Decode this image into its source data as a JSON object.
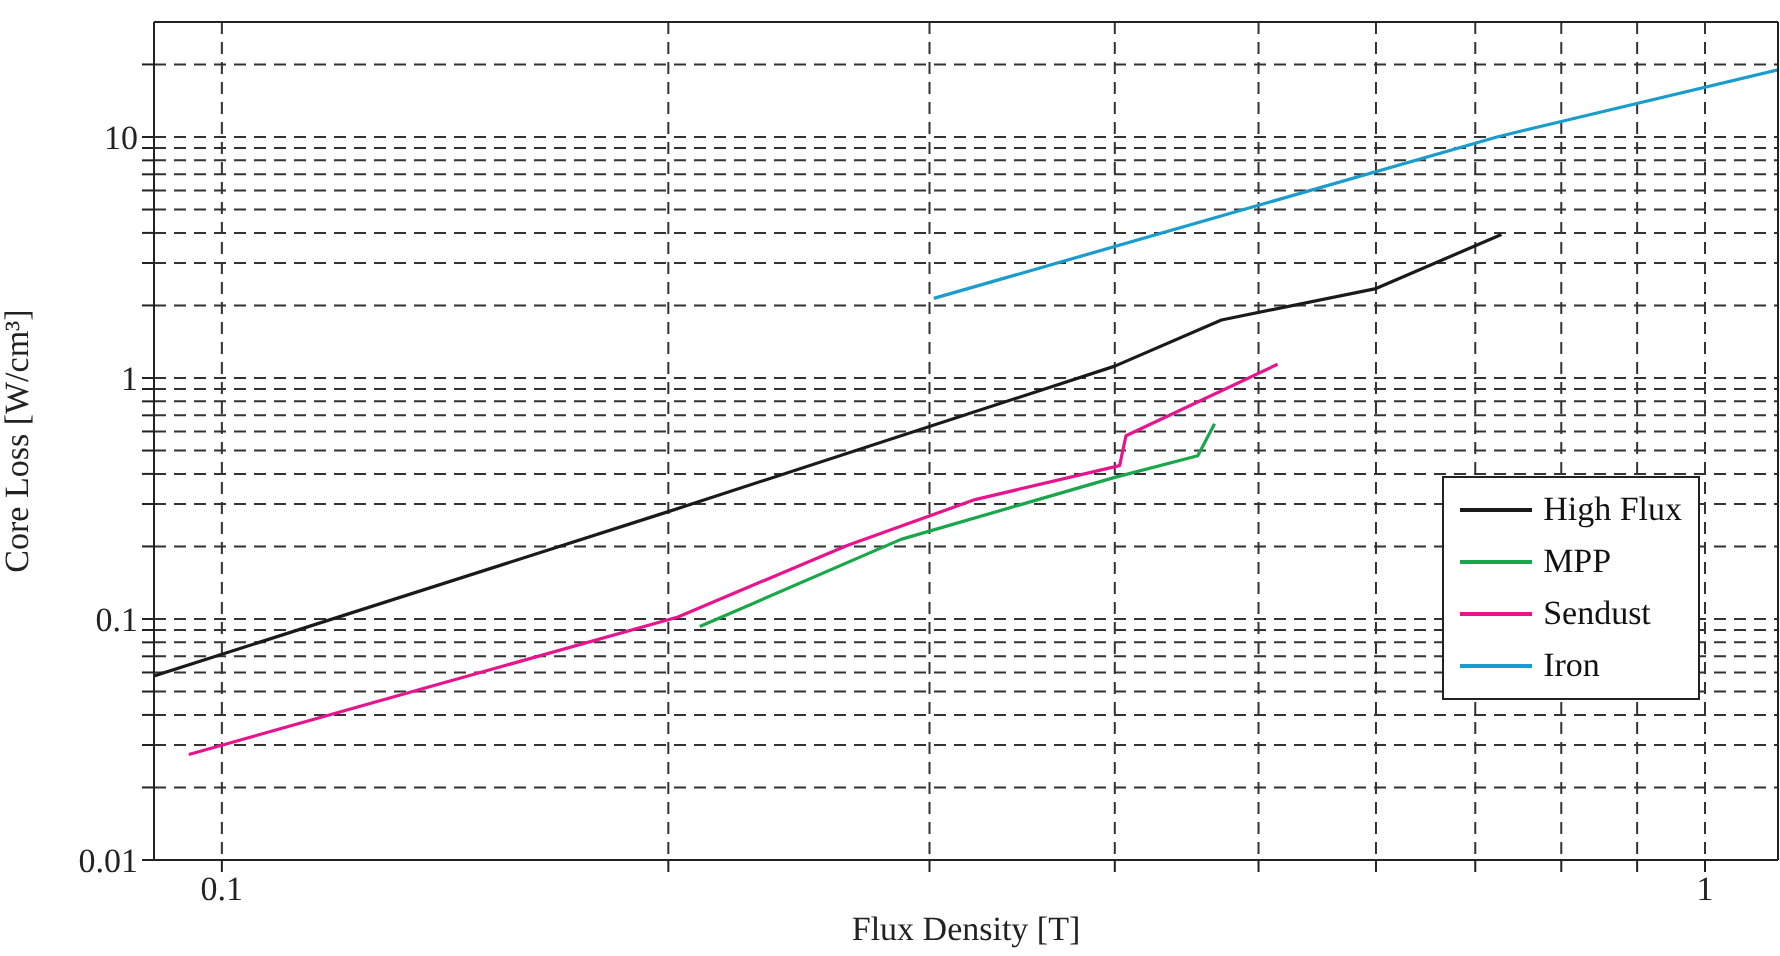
{
  "chart_data": {
    "type": "line",
    "xlabel": "Flux Density [T]",
    "ylabel": "Core Loss [W/cm³]",
    "log": "xy",
    "grid": true,
    "legend": "right",
    "xlim": [
      0.09,
      1.12
    ],
    "ylim": [
      0.01,
      30
    ],
    "xticks": [
      {
        "value": 0.1,
        "label": "0.1"
      },
      {
        "value": 0.2,
        "label": null
      },
      {
        "value": 0.3,
        "label": null
      },
      {
        "value": 0.4,
        "label": null
      },
      {
        "value": 0.5,
        "label": null
      },
      {
        "value": 0.6,
        "label": null
      },
      {
        "value": 0.7,
        "label": null
      },
      {
        "value": 0.8,
        "label": null
      },
      {
        "value": 0.9,
        "label": null
      },
      1
    ],
    "yticks": [
      0.01,
      {
        "value": 0.02,
        "label": null
      },
      {
        "value": 0.03,
        "label": null
      },
      {
        "value": 0.04,
        "label": null
      },
      {
        "value": 0.05,
        "label": null
      },
      {
        "value": 0.06,
        "label": null
      },
      {
        "value": 0.07,
        "label": null
      },
      {
        "value": 0.08,
        "label": null
      },
      {
        "value": 0.09,
        "label": null
      },
      0.1,
      {
        "value": 0.2,
        "label": null
      },
      {
        "value": 0.3,
        "label": null
      },
      {
        "value": 0.4,
        "label": null
      },
      {
        "value": 0.5,
        "label": null
      },
      {
        "value": 0.6,
        "label": null
      },
      {
        "value": 0.7,
        "label": null
      },
      {
        "value": 0.8,
        "label": null
      },
      {
        "value": 0.9,
        "label": null
      },
      1,
      {
        "value": 2,
        "label": null
      },
      {
        "value": 3,
        "label": null
      },
      {
        "value": 4,
        "label": null
      },
      {
        "value": 5,
        "label": null
      },
      {
        "value": 6,
        "label": null
      },
      {
        "value": 7,
        "label": null
      },
      {
        "value": 8,
        "label": null
      },
      {
        "value": 9,
        "label": null
      },
      10,
      {
        "value": 20,
        "label": null
      }
    ],
    "series": [
      {
        "name": "High Flux",
        "color": "#1a1a1a",
        "x": [
          0.09,
          0.2,
          0.4,
          0.472,
          0.6,
          0.729
        ],
        "values": [
          0.058,
          0.279,
          1.12,
          1.74,
          2.35,
          3.94
        ]
      },
      {
        "name": "MPP",
        "color": "#1aa64a",
        "x": [
          0.21,
          0.287,
          0.4,
          0.455,
          0.467
        ],
        "values": [
          0.093,
          0.214,
          0.387,
          0.476,
          0.646
        ]
      },
      {
        "name": "Sendust",
        "color": "#e8148c",
        "x": [
          0.095,
          0.203,
          0.264,
          0.322,
          0.403,
          0.407,
          0.515
        ],
        "values": [
          0.0274,
          0.102,
          0.202,
          0.313,
          0.433,
          0.576,
          1.14
        ]
      },
      {
        "name": "Iron",
        "color": "#1a9ccc",
        "x": [
          0.302,
          0.724,
          0.8,
          1.12
        ],
        "values": [
          2.14,
          10,
          11.6,
          19
        ]
      }
    ]
  }
}
